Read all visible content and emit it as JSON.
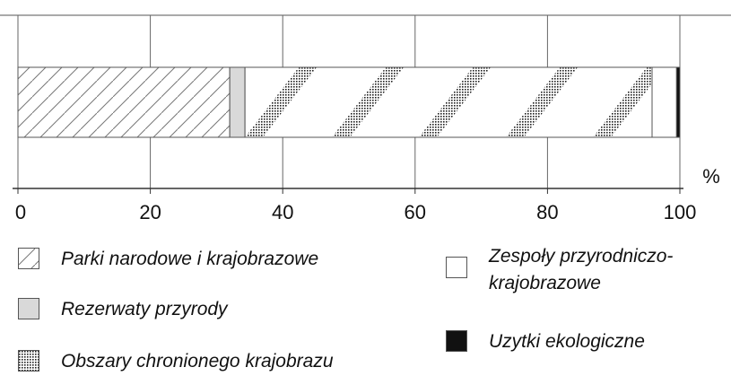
{
  "chart_data": {
    "type": "stacked-bar-horizontal",
    "categories": [
      null
    ],
    "series": [
      {
        "name": "Parki narodowe i krajobrazowe",
        "color": "#ffffff",
        "pattern": "diagonal-lines",
        "values": [
          32
        ]
      },
      {
        "name": "Rezerwaty przyrody",
        "color": "#d9d9d9",
        "values": [
          2.3
        ]
      },
      {
        "name": "Obszary chronionego krajobrazu",
        "color": "#ffffff",
        "pattern": "dots",
        "values": [
          61.5
        ]
      },
      {
        "name": "Zespoły przyrodniczo-krajobrazowe",
        "color": "#ffffff",
        "values": [
          3.7
        ]
      },
      {
        "name": "Uzytki ekologiczne",
        "color": "#111111",
        "values": [
          0.5
        ]
      }
    ],
    "xlabel": "%",
    "xlim": [
      0,
      100
    ],
    "xticks": [
      0,
      20,
      40,
      60,
      80,
      100
    ],
    "grid": true
  }
}
